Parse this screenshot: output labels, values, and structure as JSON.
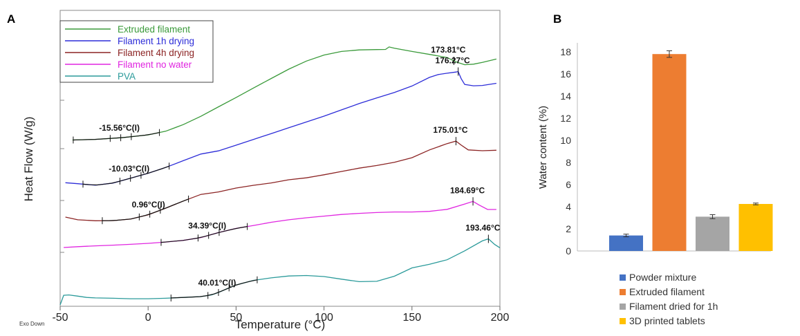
{
  "panel_a": {
    "letter": "A",
    "exo_label": "Exo Down"
  },
  "panel_b": {
    "letter": "B"
  },
  "chart_data": [
    {
      "type": "line",
      "xlabel": "Temperature (°C)",
      "ylabel": "Heat Flow (W/g)",
      "xlim": [
        -50,
        200
      ],
      "xticks": [
        "-50",
        "0",
        "50",
        "100",
        "150",
        "200"
      ],
      "legend_position": "top-left",
      "series": [
        {
          "name": "Extruded filament",
          "color": "#3a9a3a",
          "x": [
            -43,
            -30,
            -15,
            0,
            10,
            20,
            30,
            40,
            50,
            60,
            70,
            80,
            90,
            100,
            110,
            120,
            130,
            135,
            137,
            140,
            150,
            160,
            170,
            175,
            180,
            185,
            190,
            198
          ],
          "y": [
            0.2,
            0.6,
            1.6,
            3.3,
            5.5,
            9.5,
            14.5,
            20.2,
            25.8,
            31.6,
            37.3,
            42.9,
            47.8,
            51.4,
            53.6,
            54.5,
            54.7,
            54.8,
            56.3,
            55.5,
            53.6,
            51.8,
            49.9,
            47.3,
            45.6,
            45.9,
            47.0,
            49.0
          ],
          "annotations": [
            {
              "label": "-15.56°C(I)",
              "x": -15.56
            },
            {
              "label": "173.81°C",
              "x": 173.81
            }
          ]
        },
        {
          "name": "Filament 1h drying",
          "color": "#2c2cd8",
          "x": [
            -47,
            -40,
            -30,
            -20,
            -10,
            0,
            10,
            20,
            30,
            40,
            50,
            60,
            70,
            80,
            90,
            100,
            110,
            120,
            130,
            140,
            150,
            160,
            165,
            170,
            175,
            176.27,
            178,
            180,
            185,
            190,
            198
          ],
          "y": [
            0.3,
            -0.3,
            -1.2,
            0.1,
            3.0,
            6.0,
            9.5,
            13.6,
            17.6,
            19.5,
            22.9,
            26.4,
            29.9,
            33.4,
            36.9,
            40.4,
            44.2,
            48.0,
            51.4,
            54.7,
            58.6,
            63.8,
            65.5,
            66.3,
            67.0,
            67.3,
            63.0,
            59.5,
            58.7,
            58.9,
            60.2
          ],
          "annotations": [
            {
              "label": "-10.03°C(I)",
              "x": -10.03
            },
            {
              "label": "176.27°C",
              "x": 176.27
            }
          ]
        },
        {
          "name": "Filament 4h drying",
          "color": "#8b2323",
          "x": [
            -47,
            -40,
            -30,
            -20,
            -10,
            0,
            10,
            20,
            30,
            40,
            50,
            60,
            70,
            80,
            90,
            100,
            110,
            120,
            130,
            140,
            150,
            160,
            170,
            175.01,
            178,
            182,
            190,
            198
          ],
          "y": [
            0.4,
            -1.2,
            -1.8,
            -1.7,
            -0.8,
            1.8,
            5.8,
            10.1,
            14.1,
            15.6,
            17.9,
            19.6,
            21.0,
            22.9,
            24.1,
            25.9,
            27.9,
            29.9,
            31.5,
            33.4,
            36.2,
            40.9,
            44.7,
            46.2,
            43.8,
            40.9,
            40.4,
            40.7
          ],
          "annotations": [
            {
              "label": "0.96°C(I)",
              "x": 0.96
            },
            {
              "label": "175.01°C",
              "x": 175.01
            }
          ]
        },
        {
          "name": "Filament no water",
          "color": "#e025e0",
          "x": [
            -48,
            -40,
            -30,
            -20,
            -10,
            0,
            10,
            20,
            30,
            40,
            50,
            60,
            70,
            80,
            90,
            100,
            110,
            120,
            130,
            140,
            150,
            160,
            170,
            180,
            184.69,
            188,
            193,
            198
          ],
          "y": [
            0.0,
            0.5,
            1.0,
            1.4,
            1.9,
            2.5,
            3.3,
            4.3,
            6.0,
            9.0,
            11.5,
            13.3,
            15.2,
            16.7,
            17.9,
            18.9,
            19.9,
            20.6,
            21.1,
            21.4,
            21.4,
            21.8,
            23.0,
            26.2,
            27.8,
            25.7,
            22.9,
            22.9
          ],
          "annotations": [
            {
              "label": "34.39°C(I)",
              "x": 34.39
            },
            {
              "label": "184.69°C",
              "x": 184.69
            }
          ]
        },
        {
          "name": "PVA",
          "color": "#2a9a9a",
          "x": [
            -50,
            -48,
            -45,
            -40,
            -35,
            -30,
            -20,
            -10,
            0,
            10,
            20,
            30,
            36,
            40,
            45,
            50,
            60,
            70,
            80,
            90,
            100,
            110,
            120,
            130,
            140,
            150,
            160,
            170,
            180,
            190,
            193.46,
            197,
            200
          ],
          "y": [
            -5.0,
            0.8,
            1.0,
            0.3,
            -0.5,
            -0.8,
            -1.0,
            -1.3,
            -1.3,
            -1.0,
            -0.5,
            0.0,
            1.0,
            2.5,
            4.8,
            7.0,
            9.8,
            11.3,
            12.4,
            12.7,
            12.1,
            10.5,
            9.0,
            9.2,
            12.3,
            17.3,
            19.5,
            22.2,
            27.6,
            33.6,
            34.8,
            31.4,
            29.4
          ],
          "annotations": [
            {
              "label": "40.01°C(I)",
              "x": 40.01
            },
            {
              "label": "193.46°C",
              "x": 193.46
            }
          ]
        }
      ]
    },
    {
      "type": "bar",
      "ylabel": "Water content (%)",
      "ylim": [
        0,
        18
      ],
      "yticks": [
        "0",
        "2",
        "4",
        "6",
        "8",
        "10",
        "12",
        "14",
        "16",
        "18"
      ],
      "legend_position": "bottom",
      "categories": [
        "Powder mixture",
        "Extruded filament",
        "Filament dried for 1h",
        "3D printed tablets"
      ],
      "values": [
        1.4,
        17.8,
        3.1,
        4.25
      ],
      "errors": [
        0.12,
        0.3,
        0.18,
        0.08
      ],
      "colors": [
        "#4472c4",
        "#ed7d31",
        "#a5a5a5",
        "#ffc000"
      ]
    }
  ]
}
